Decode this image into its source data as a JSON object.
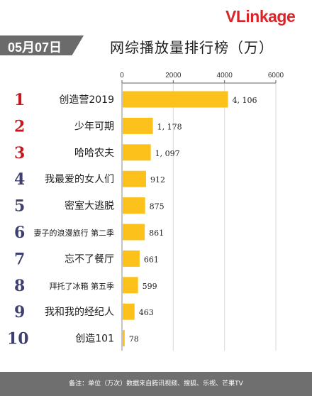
{
  "header": {
    "logo_v": "V",
    "logo_l": "L",
    "logo_rest": "inkage",
    "date": "05月07日",
    "title": "网综播放量排行榜（万）"
  },
  "footer": {
    "note": "备注：单位（万次）数据来自腾讯视频、搜狐、乐视、芒果TV"
  },
  "chart_data": {
    "type": "bar",
    "orientation": "horizontal",
    "title": "网综播放量排行榜（万）",
    "xlim": [
      0,
      6000
    ],
    "ticks": [
      0,
      2000,
      4000,
      6000
    ],
    "tick_labels": [
      "0",
      "2000",
      "4000",
      "6000"
    ],
    "categories": [
      "创造营2019",
      "少年可期",
      "哈哈农夫",
      "我最爱的女人们",
      "密室大逃脱",
      "妻子的浪漫旅行 第二季",
      "忘不了餐厅",
      "拜托了冰箱 第五季",
      "我和我的经纪人",
      "创造101"
    ],
    "ranks": [
      "1",
      "2",
      "3",
      "4",
      "5",
      "6",
      "7",
      "8",
      "9",
      "10"
    ],
    "values": [
      4106,
      1178,
      1097,
      912,
      875,
      861,
      661,
      599,
      463,
      78
    ],
    "value_labels": [
      "4, 106",
      "1, 178",
      "1, 097",
      "912",
      "875",
      "861",
      "661",
      "599",
      "463",
      "78"
    ],
    "colors": {
      "bar": "#fcc21b",
      "rank_top": "#c8161d",
      "rank_other": "#3d3f6e",
      "grid": "#d9d9d9"
    }
  }
}
